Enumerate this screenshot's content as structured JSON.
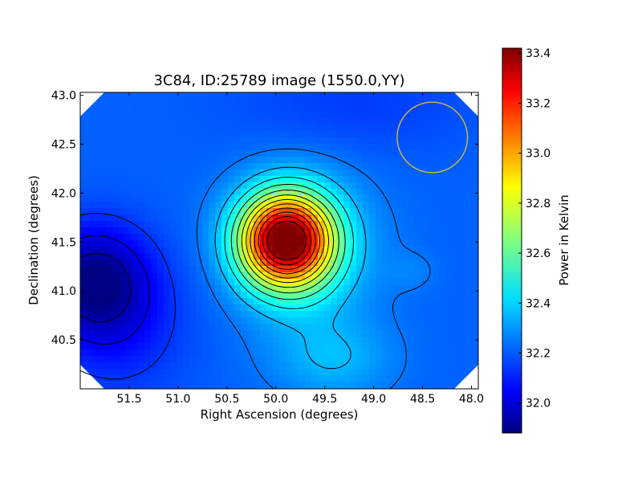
{
  "chart_data": {
    "type": "heatmap",
    "title": "3C84, ID:25789 image (1550.0,YY)",
    "xlabel": "Right Ascension (degrees)",
    "ylabel": "Declination (degrees)",
    "colorbar_label": "Power in Kelvin",
    "xlim": [
      52.0,
      47.93
    ],
    "ylim": [
      40.0,
      43.03
    ],
    "x_ticks": [
      51.5,
      51.0,
      50.5,
      50.0,
      49.5,
      49.0,
      48.5,
      48.0
    ],
    "x_tick_labels": [
      "51.5",
      "51.0",
      "50.5",
      "50.0",
      "49.5",
      "49.0",
      "48.5",
      "48.0"
    ],
    "y_ticks": [
      40.5,
      41.0,
      41.5,
      42.0,
      42.5,
      43.0
    ],
    "y_tick_labels": [
      "40.5",
      "41.0",
      "41.5",
      "42.0",
      "42.5",
      "43.0"
    ],
    "colorbar_range": [
      31.88,
      33.42
    ],
    "colorbar_ticks": [
      32.0,
      32.2,
      32.4,
      32.6,
      32.8,
      33.0,
      33.2,
      33.4
    ],
    "colorbar_tick_labels": [
      "32.0",
      "32.2",
      "32.4",
      "32.6",
      "32.8",
      "33.0",
      "33.2",
      "33.4"
    ],
    "colormap": "jet",
    "peak": {
      "ra": 49.9,
      "dec": 41.52,
      "value": 33.4
    },
    "minimum": {
      "ra": 51.85,
      "dec": 41.1,
      "value": 31.9
    },
    "secondary_peak": {
      "ra": 48.6,
      "dec": 41.2,
      "value": 32.2
    },
    "beam_circle": {
      "ra": 48.4,
      "dec": 42.57,
      "radius_deg": 0.36,
      "color": "#c8b43c"
    },
    "contour_color": "#000000",
    "grid": false
  }
}
